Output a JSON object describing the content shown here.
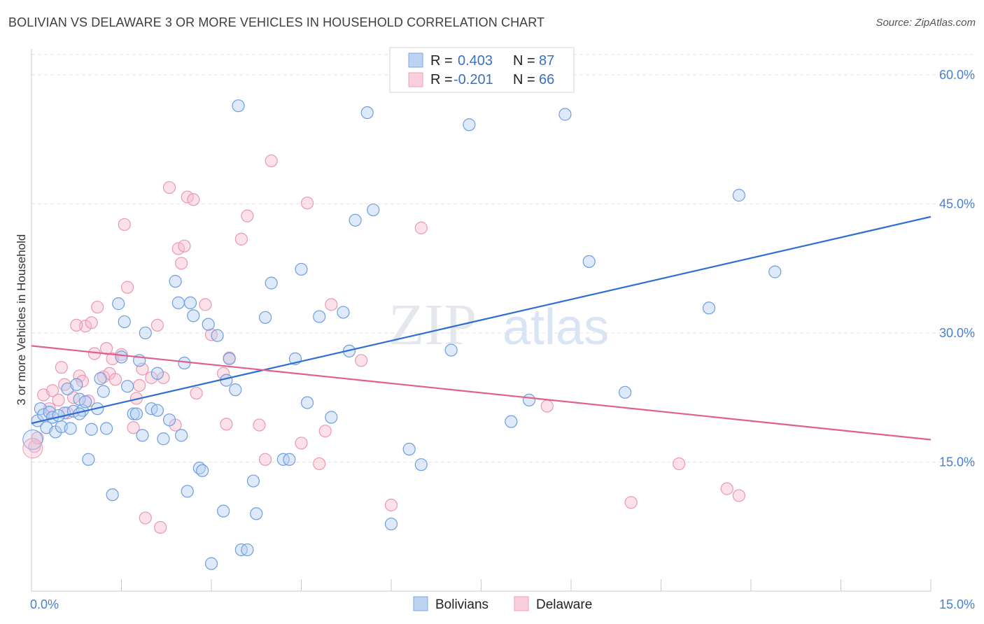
{
  "title": "BOLIVIAN VS DELAWARE 3 OR MORE VEHICLES IN HOUSEHOLD CORRELATION CHART",
  "source": "Source: ZipAtlas.com",
  "watermark": {
    "zip": "ZIP",
    "atlas": "atlas"
  },
  "legend_top": {
    "rows": [
      {
        "r_label": "R = ",
        "r_value": "0.403",
        "n_label": "N = ",
        "n_value": "87"
      },
      {
        "r_label": "R = ",
        "r_value": "-0.201",
        "n_label": "N = ",
        "n_value": "66"
      }
    ]
  },
  "legend_bottom": {
    "items": [
      "Bolivians",
      "Delaware"
    ]
  },
  "chart_data": {
    "type": "scatter",
    "xlabel": "",
    "ylabel": "3 or more Vehicles in Household",
    "xlim": [
      0,
      15
    ],
    "ylim": [
      0,
      63
    ],
    "x_tick_labels": [
      "0.0%",
      "15.0%"
    ],
    "y_ticks": [
      15,
      30,
      45,
      60
    ],
    "y_tick_labels": [
      "15.0%",
      "30.0%",
      "45.0%",
      "60.0%"
    ],
    "grid": true,
    "colors": {
      "Bolivians": "#7ba7e3",
      "Delaware": "#f0a0ba",
      "blue_line": "#2f6fd0",
      "pink_line": "#e0608c"
    },
    "series": [
      {
        "name": "Bolivians",
        "r": 0.403,
        "n": 87,
        "trend": [
          [
            0,
            19.5
          ],
          [
            15,
            43.5
          ]
        ],
        "points": [
          [
            0.1,
            19.8
          ],
          [
            0.15,
            21.2
          ],
          [
            0.2,
            20.5
          ],
          [
            0.25,
            19.0
          ],
          [
            0.3,
            20.8
          ],
          [
            0.35,
            20.2
          ],
          [
            0.4,
            18.5
          ],
          [
            0.5,
            19.1
          ],
          [
            0.55,
            20.7
          ],
          [
            0.6,
            23.5
          ],
          [
            0.7,
            20.9
          ],
          [
            0.75,
            24.0
          ],
          [
            0.8,
            22.3
          ],
          [
            0.85,
            21.0
          ],
          [
            0.95,
            15.3
          ],
          [
            1.0,
            18.8
          ],
          [
            1.1,
            21.2
          ],
          [
            1.15,
            24.7
          ],
          [
            1.2,
            23.2
          ],
          [
            1.25,
            18.9
          ],
          [
            1.35,
            11.2
          ],
          [
            1.5,
            27.2
          ],
          [
            1.55,
            31.3
          ],
          [
            1.6,
            23.8
          ],
          [
            1.7,
            20.6
          ],
          [
            1.8,
            26.8
          ],
          [
            1.85,
            18.1
          ],
          [
            1.9,
            30.0
          ],
          [
            2.0,
            21.2
          ],
          [
            2.1,
            25.3
          ],
          [
            2.2,
            17.7
          ],
          [
            2.3,
            19.9
          ],
          [
            2.4,
            36.0
          ],
          [
            2.5,
            18.1
          ],
          [
            2.55,
            26.5
          ],
          [
            2.6,
            11.6
          ],
          [
            2.7,
            32.0
          ],
          [
            2.8,
            14.3
          ],
          [
            2.85,
            14.0
          ],
          [
            2.95,
            31.0
          ],
          [
            3.1,
            29.7
          ],
          [
            3.2,
            9.3
          ],
          [
            3.3,
            27.0
          ],
          [
            3.4,
            23.4
          ],
          [
            3.45,
            56.4
          ],
          [
            3.5,
            4.8
          ],
          [
            3.6,
            4.8
          ],
          [
            3.7,
            12.8
          ],
          [
            3.75,
            9.0
          ],
          [
            3.9,
            31.8
          ],
          [
            4.0,
            35.8
          ],
          [
            4.2,
            15.3
          ],
          [
            4.3,
            15.3
          ],
          [
            4.4,
            27.0
          ],
          [
            4.5,
            37.4
          ],
          [
            4.6,
            21.9
          ],
          [
            4.8,
            31.9
          ],
          [
            5.0,
            20.2
          ],
          [
            5.2,
            32.4
          ],
          [
            5.3,
            27.9
          ],
          [
            5.4,
            43.1
          ],
          [
            5.6,
            55.6
          ],
          [
            5.7,
            44.3
          ],
          [
            6.0,
            7.8
          ],
          [
            6.3,
            16.5
          ],
          [
            6.5,
            14.7
          ],
          [
            7.0,
            28.0
          ],
          [
            7.3,
            54.2
          ],
          [
            8.0,
            19.7
          ],
          [
            8.3,
            22.2
          ],
          [
            8.9,
            55.4
          ],
          [
            9.3,
            38.3
          ],
          [
            9.9,
            23.1
          ],
          [
            11.3,
            32.9
          ],
          [
            11.8,
            46.0
          ],
          [
            12.4,
            37.1
          ],
          [
            3.0,
            3.2
          ],
          [
            2.65,
            33.5
          ],
          [
            2.1,
            21.0
          ],
          [
            1.45,
            33.4
          ],
          [
            0.9,
            22.0
          ],
          [
            0.65,
            18.9
          ],
          [
            0.45,
            20.4
          ],
          [
            2.45,
            33.5
          ],
          [
            1.75,
            20.6
          ],
          [
            0.8,
            20.6
          ],
          [
            3.25,
            24.5
          ]
        ]
      },
      {
        "name": "Delaware",
        "r": -0.201,
        "n": 66,
        "trend": [
          [
            0,
            28.5
          ],
          [
            15,
            17.6
          ]
        ],
        "points": [
          [
            0.05,
            16.8
          ],
          [
            0.1,
            17.8
          ],
          [
            0.2,
            22.8
          ],
          [
            0.3,
            21.2
          ],
          [
            0.35,
            23.3
          ],
          [
            0.45,
            22.2
          ],
          [
            0.5,
            26.0
          ],
          [
            0.55,
            24.0
          ],
          [
            0.6,
            20.7
          ],
          [
            0.7,
            22.5
          ],
          [
            0.8,
            25.0
          ],
          [
            0.85,
            24.4
          ],
          [
            0.9,
            30.8
          ],
          [
            0.95,
            22.1
          ],
          [
            1.0,
            31.2
          ],
          [
            1.05,
            27.6
          ],
          [
            1.1,
            33.0
          ],
          [
            1.2,
            24.9
          ],
          [
            1.25,
            28.2
          ],
          [
            1.3,
            25.3
          ],
          [
            1.4,
            24.6
          ],
          [
            1.5,
            27.5
          ],
          [
            1.55,
            42.6
          ],
          [
            1.6,
            35.3
          ],
          [
            1.7,
            19.0
          ],
          [
            1.75,
            22.4
          ],
          [
            1.8,
            23.9
          ],
          [
            1.85,
            25.8
          ],
          [
            1.9,
            8.5
          ],
          [
            2.0,
            24.8
          ],
          [
            2.1,
            30.9
          ],
          [
            2.15,
            7.4
          ],
          [
            2.2,
            24.8
          ],
          [
            2.3,
            46.9
          ],
          [
            2.4,
            19.3
          ],
          [
            2.45,
            39.8
          ],
          [
            2.5,
            38.1
          ],
          [
            2.55,
            40.1
          ],
          [
            2.6,
            45.8
          ],
          [
            2.7,
            45.5
          ],
          [
            2.75,
            23.0
          ],
          [
            2.9,
            33.3
          ],
          [
            3.0,
            29.8
          ],
          [
            3.2,
            25.3
          ],
          [
            3.25,
            19.4
          ],
          [
            3.3,
            27.1
          ],
          [
            3.5,
            40.9
          ],
          [
            3.6,
            43.6
          ],
          [
            3.8,
            19.3
          ],
          [
            3.9,
            15.3
          ],
          [
            4.0,
            50.0
          ],
          [
            4.5,
            17.2
          ],
          [
            4.6,
            45.1
          ],
          [
            4.8,
            14.8
          ],
          [
            4.9,
            18.6
          ],
          [
            5.0,
            33.3
          ],
          [
            5.5,
            26.8
          ],
          [
            6.0,
            10.0
          ],
          [
            6.5,
            42.2
          ],
          [
            8.6,
            21.5
          ],
          [
            10.0,
            10.3
          ],
          [
            10.8,
            14.8
          ],
          [
            11.6,
            11.9
          ],
          [
            11.8,
            11.1
          ],
          [
            1.35,
            27.0
          ],
          [
            0.75,
            30.9
          ]
        ]
      }
    ]
  }
}
